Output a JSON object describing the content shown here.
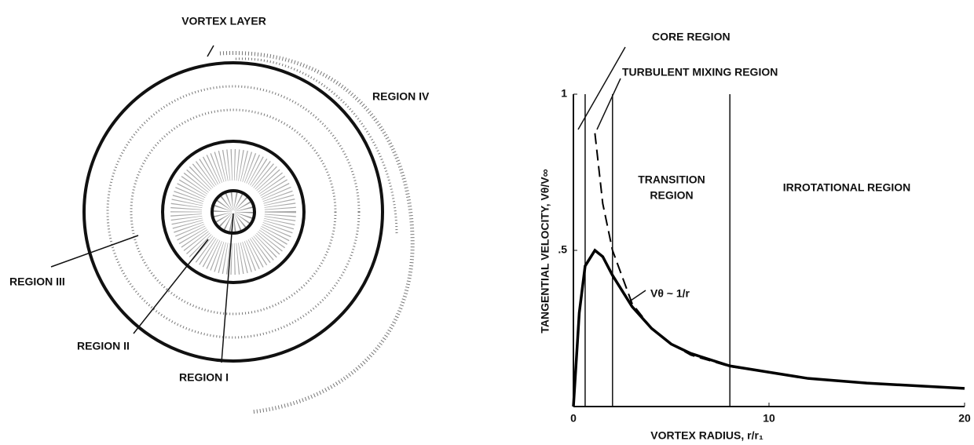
{
  "diagram": {
    "labels": [
      "VORTEX LAYER",
      "REGION IV",
      "REGION III",
      "REGION II",
      "REGION I"
    ]
  },
  "chart_data": {
    "type": "line",
    "xlabel": "VORTEX RADIUS, r/r₁",
    "ylabel": "TANGENTIAL VELOCITY, Vθ/V∞",
    "x": [
      0,
      0.3,
      0.6,
      1.1,
      1.5,
      2,
      3,
      4,
      5,
      6,
      8,
      10,
      12,
      15,
      20
    ],
    "series": [
      {
        "color": "#000000",
        "dashed": false,
        "values": [
          0,
          0.3,
          0.45,
          0.5,
          0.48,
          0.42,
          0.32,
          0.25,
          0.2,
          0.17,
          0.13,
          0.11,
          0.09,
          0.075,
          0.058
        ]
      },
      {
        "color": "#000000",
        "dashed": true,
        "values": [
          null,
          null,
          null,
          0.875,
          0.65,
          0.5,
          0.33,
          0.25,
          0.2,
          0.165,
          0.128,
          0.11,
          null,
          null,
          null
        ]
      }
    ],
    "region_boundaries": [
      0.6,
      2,
      8
    ],
    "annotations": [
      "CORE REGION",
      "TURBULENT MIXING REGION",
      "TRANSITION",
      "REGION",
      "IRROTATIONAL REGION",
      "Vθ ~ 1/r"
    ],
    "xlim": [
      0,
      20
    ],
    "ylim": [
      0,
      1
    ],
    "xticks": [
      0,
      10,
      20
    ],
    "yticks": [
      {
        "value": 0.5,
        "label": ".5"
      },
      1
    ],
    "grid": false
  }
}
